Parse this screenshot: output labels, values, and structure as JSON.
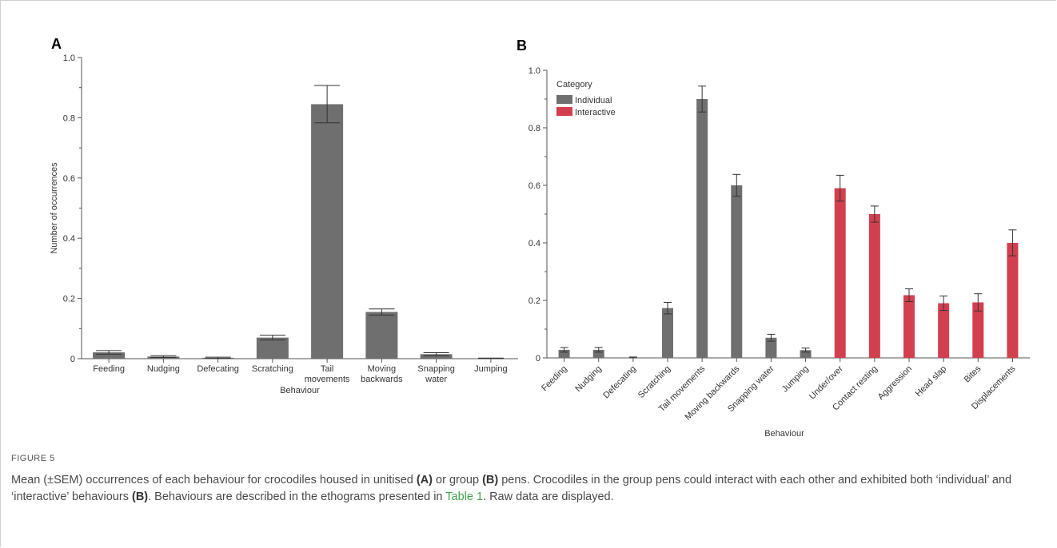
{
  "figure": {
    "label": "FIGURE 5",
    "caption_parts": [
      {
        "text": "Mean (±SEM) occurrences of each behaviour for crocodiles housed in unitised ",
        "style": "normal"
      },
      {
        "text": "(A)",
        "style": "bold"
      },
      {
        "text": " or group ",
        "style": "normal"
      },
      {
        "text": "(B)",
        "style": "bold"
      },
      {
        "text": " pens. Crocodiles in the group pens could interact with each other and exhibited both ‘individual’ and ‘interactive’ behaviours ",
        "style": "normal"
      },
      {
        "text": "(B)",
        "style": "bold"
      },
      {
        "text": ". Behaviours are described in the ethograms presented in ",
        "style": "normal"
      },
      {
        "text": "Table 1",
        "style": "link"
      },
      {
        "text": ". Raw data are displayed.",
        "style": "normal"
      }
    ]
  },
  "colors": {
    "individual": "#6f6f6f",
    "interactive": "#d2404f",
    "axis": "#555555",
    "text": "#333333",
    "link": "#3fa34d"
  },
  "chart_data": [
    {
      "type": "bar",
      "panel": "A",
      "categories": [
        "Feeding",
        "Nudging",
        "Defecating",
        "Scratching",
        "Tail movements",
        "Moving backwards",
        "Snapping water",
        "Jumping"
      ],
      "tick_labels": [
        [
          "Feeding"
        ],
        [
          "Nudging"
        ],
        [
          "Defecating"
        ],
        [
          "Scratching"
        ],
        [
          "Tail",
          "movements"
        ],
        [
          "Moving",
          "backwards"
        ],
        [
          "Snapping",
          "water"
        ],
        [
          "Jumping"
        ]
      ],
      "values": [
        0.021,
        0.007,
        0.003,
        0.07,
        0.845,
        0.155,
        0.015,
        0.001
      ],
      "errors": [
        0.006,
        0.003,
        0.002,
        0.008,
        0.062,
        0.01,
        0.005,
        0.001
      ],
      "xlabel": "Behaviour",
      "ylabel": "Number of occurrences",
      "ylim": [
        0,
        1.0
      ],
      "yticks": [
        "0",
        "0.2",
        "0.4",
        "0.6",
        "0.8",
        "1.0"
      ],
      "grid": false
    },
    {
      "type": "bar",
      "panel": "B",
      "categories": [
        "Feeding",
        "Nudging",
        "Defecating",
        "Scratching",
        "Tail movements",
        "Moving backwards",
        "Snapping water",
        "Jumping",
        "Under/over",
        "Contact resting",
        "Aggression",
        "Head slap",
        "Bites",
        "Displacements"
      ],
      "series_group": [
        "Individual",
        "Individual",
        "Individual",
        "Individual",
        "Individual",
        "Individual",
        "Individual",
        "Individual",
        "Interactive",
        "Interactive",
        "Interactive",
        "Interactive",
        "Interactive",
        "Interactive"
      ],
      "values": [
        0.028,
        0.028,
        0.001,
        0.173,
        0.9,
        0.6,
        0.07,
        0.027,
        0.59,
        0.5,
        0.218,
        0.19,
        0.193,
        0.4
      ],
      "errors": [
        0.008,
        0.008,
        0.002,
        0.02,
        0.045,
        0.038,
        0.012,
        0.007,
        0.045,
        0.028,
        0.022,
        0.025,
        0.03,
        0.045
      ],
      "legend": {
        "title": "Category",
        "entries": [
          "Individual",
          "Interactive"
        ],
        "placement": "top-left"
      },
      "xlabel": "Behaviour",
      "ylabel": "",
      "ylim": [
        0,
        1.0
      ],
      "yticks": [
        "0",
        "0.2",
        "0.4",
        "0.6",
        "0.8",
        "1.0"
      ],
      "grid": false
    }
  ]
}
